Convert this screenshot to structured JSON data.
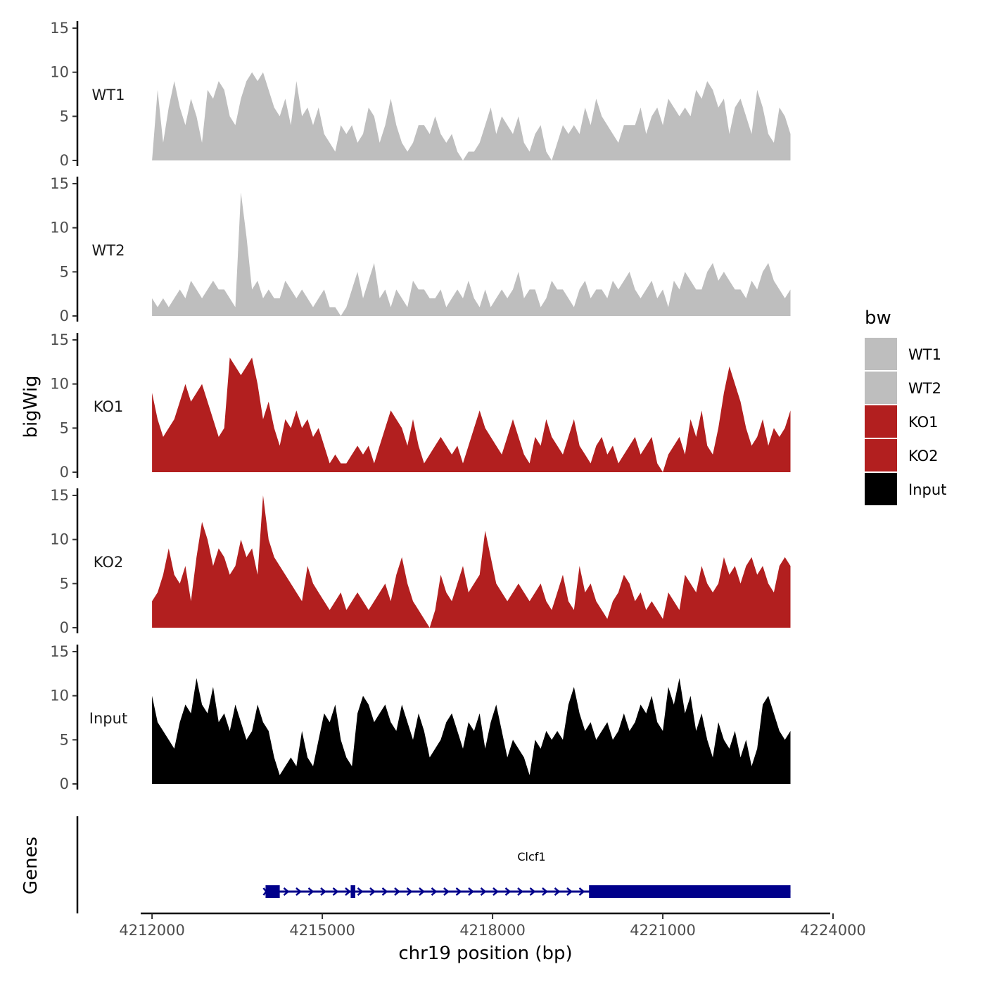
{
  "chart_data": {
    "type": "area",
    "ylabel": "bigWig",
    "xlabel": "chr19 position (bp)",
    "xlim": [
      4211800,
      4223950
    ],
    "ylim": [
      0,
      15
    ],
    "yticks": [
      0,
      5,
      10,
      15
    ],
    "xticks": [
      4212000,
      4215000,
      4218000,
      4221000,
      4224000
    ],
    "track_start": 4212000,
    "track_end": 4223250,
    "gene_track_label": "Genes",
    "legend": {
      "title": "bw",
      "entries": [
        {
          "label": "WT1",
          "color": "#bebebe"
        },
        {
          "label": "WT2",
          "color": "#bebebe"
        },
        {
          "label": "KO1",
          "color": "#b21f1f"
        },
        {
          "label": "KO2",
          "color": "#b21f1f"
        },
        {
          "label": "Input",
          "color": "#000000"
        }
      ]
    },
    "series": [
      {
        "name": "WT1",
        "color": "#bebebe",
        "values": [
          0,
          8,
          2,
          6,
          9,
          6,
          4,
          7,
          5,
          2,
          8,
          7,
          9,
          8,
          5,
          4,
          7,
          9,
          10,
          9,
          10,
          8,
          6,
          5,
          7,
          4,
          9,
          5,
          6,
          4,
          6,
          3,
          2,
          1,
          4,
          3,
          4,
          2,
          3,
          6,
          5,
          2,
          4,
          7,
          4,
          2,
          1,
          2,
          4,
          4,
          3,
          5,
          3,
          2,
          3,
          1,
          0,
          1,
          1,
          2,
          4,
          6,
          3,
          5,
          4,
          3,
          5,
          2,
          1,
          3,
          4,
          1,
          0,
          2,
          4,
          3,
          4,
          3,
          6,
          4,
          7,
          5,
          4,
          3,
          2,
          4,
          4,
          4,
          6,
          3,
          5,
          6,
          4,
          7,
          6,
          5,
          6,
          5,
          8,
          7,
          9,
          8,
          6,
          7,
          3,
          6,
          7,
          5,
          3,
          8,
          6,
          3,
          2,
          6,
          5,
          3
        ]
      },
      {
        "name": "WT2",
        "color": "#bebebe",
        "values": [
          2,
          1,
          2,
          1,
          2,
          3,
          2,
          4,
          3,
          2,
          3,
          4,
          3,
          3,
          2,
          1,
          14,
          9,
          3,
          4,
          2,
          3,
          2,
          2,
          4,
          3,
          2,
          3,
          2,
          1,
          2,
          3,
          1,
          1,
          0,
          1,
          3,
          5,
          2,
          4,
          6,
          2,
          3,
          1,
          3,
          2,
          1,
          4,
          3,
          3,
          2,
          2,
          3,
          1,
          2,
          3,
          2,
          4,
          2,
          1,
          3,
          1,
          2,
          3,
          2,
          3,
          5,
          2,
          3,
          3,
          1,
          2,
          4,
          3,
          3,
          2,
          1,
          3,
          4,
          2,
          3,
          3,
          2,
          4,
          3,
          4,
          5,
          3,
          2,
          3,
          4,
          2,
          3,
          1,
          4,
          3,
          5,
          4,
          3,
          3,
          5,
          6,
          4,
          5,
          4,
          3,
          3,
          2,
          4,
          3,
          5,
          6,
          4,
          3,
          2,
          3
        ]
      },
      {
        "name": "KO1",
        "color": "#b21f1f",
        "values": [
          9,
          6,
          4,
          5,
          6,
          8,
          10,
          8,
          9,
          10,
          8,
          6,
          4,
          5,
          13,
          12,
          11,
          12,
          13,
          10,
          6,
          8,
          5,
          3,
          6,
          5,
          7,
          5,
          6,
          4,
          5,
          3,
          1,
          2,
          1,
          1,
          2,
          3,
          2,
          3,
          1,
          3,
          5,
          7,
          6,
          5,
          3,
          6,
          3,
          1,
          2,
          3,
          4,
          3,
          2,
          3,
          1,
          3,
          5,
          7,
          5,
          4,
          3,
          2,
          4,
          6,
          4,
          2,
          1,
          4,
          3,
          6,
          4,
          3,
          2,
          4,
          6,
          3,
          2,
          1,
          3,
          4,
          2,
          3,
          1,
          2,
          3,
          4,
          2,
          3,
          4,
          1,
          0,
          2,
          3,
          4,
          2,
          6,
          4,
          7,
          3,
          2,
          5,
          9,
          12,
          10,
          8,
          5,
          3,
          4,
          6,
          3,
          5,
          4,
          5,
          7
        ]
      },
      {
        "name": "KO2",
        "color": "#b21f1f",
        "values": [
          3,
          4,
          6,
          9,
          6,
          5,
          7,
          3,
          8,
          12,
          10,
          7,
          9,
          8,
          6,
          7,
          10,
          8,
          9,
          6,
          15,
          10,
          8,
          7,
          6,
          5,
          4,
          3,
          7,
          5,
          4,
          3,
          2,
          3,
          4,
          2,
          3,
          4,
          3,
          2,
          3,
          4,
          5,
          3,
          6,
          8,
          5,
          3,
          2,
          1,
          0,
          2,
          6,
          4,
          3,
          5,
          7,
          4,
          5,
          6,
          11,
          8,
          5,
          4,
          3,
          4,
          5,
          4,
          3,
          4,
          5,
          3,
          2,
          4,
          6,
          3,
          2,
          7,
          4,
          5,
          3,
          2,
          1,
          3,
          4,
          6,
          5,
          3,
          4,
          2,
          3,
          2,
          1,
          4,
          3,
          2,
          6,
          5,
          4,
          7,
          5,
          4,
          5,
          8,
          6,
          7,
          5,
          7,
          8,
          6,
          7,
          5,
          4,
          7,
          8,
          7
        ]
      },
      {
        "name": "Input",
        "color": "#000000",
        "values": [
          10,
          7,
          6,
          5,
          4,
          7,
          9,
          8,
          12,
          9,
          8,
          11,
          7,
          8,
          6,
          9,
          7,
          5,
          6,
          9,
          7,
          6,
          3,
          1,
          2,
          3,
          2,
          6,
          3,
          2,
          5,
          8,
          7,
          9,
          5,
          3,
          2,
          8,
          10,
          9,
          7,
          8,
          9,
          7,
          6,
          9,
          7,
          5,
          8,
          6,
          3,
          4,
          5,
          7,
          8,
          6,
          4,
          7,
          6,
          8,
          4,
          7,
          9,
          6,
          3,
          5,
          4,
          3,
          1,
          5,
          4,
          6,
          5,
          6,
          5,
          9,
          11,
          8,
          6,
          7,
          5,
          6,
          7,
          5,
          6,
          8,
          6,
          7,
          9,
          8,
          10,
          7,
          6,
          11,
          9,
          12,
          8,
          10,
          6,
          8,
          5,
          3,
          7,
          5,
          4,
          6,
          3,
          5,
          2,
          4,
          9,
          10,
          8,
          6,
          5,
          6
        ]
      }
    ],
    "genes": [
      {
        "name": "Clcf1",
        "start": 4214000,
        "end": 4223250,
        "strand": "+",
        "exons": [
          [
            4214000,
            4214250
          ],
          [
            4215500,
            4215580
          ],
          [
            4219700,
            4223250
          ]
        ]
      }
    ]
  }
}
